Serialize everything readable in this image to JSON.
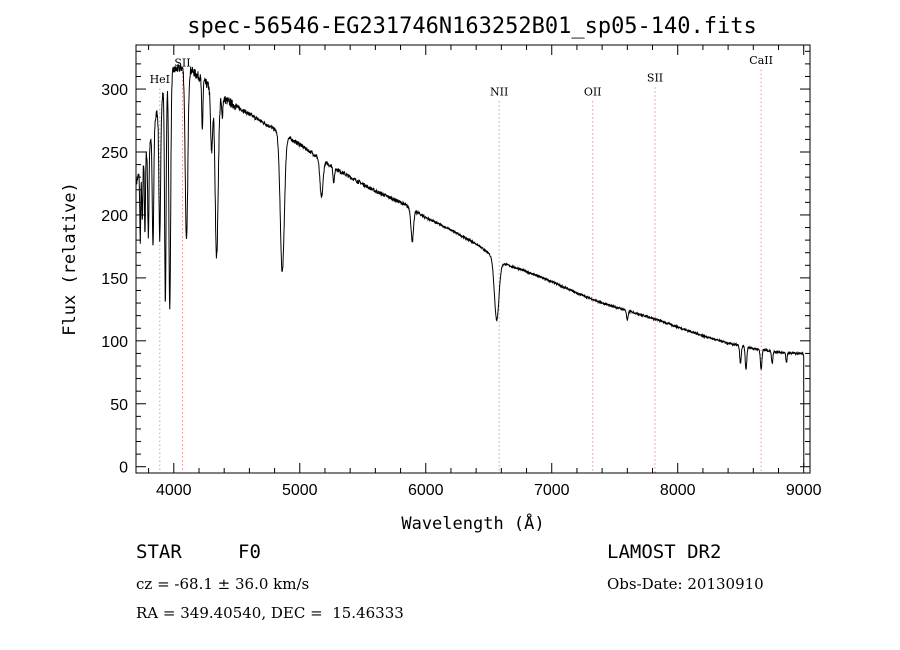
{
  "chart_data": {
    "type": "line",
    "title": "spec-56546-EG231746N163252B01_sp05-140.fits",
    "xlabel": "Wavelength (Å)",
    "ylabel": "Flux (relative)",
    "xlim": [
      3700,
      9050
    ],
    "ylim": [
      -5,
      335
    ],
    "xticks": [
      4000,
      5000,
      6000,
      7000,
      8000,
      9000
    ],
    "yticks": [
      0,
      50,
      100,
      150,
      200,
      250,
      300
    ],
    "grid": false,
    "continuum": {
      "x": [
        3700,
        3800,
        3900,
        4000,
        4100,
        4200,
        4300,
        4400,
        4600,
        4800,
        5000,
        5200,
        5400,
        5600,
        5800,
        6000,
        6200,
        6400,
        6600,
        6800,
        7000,
        7200,
        7400,
        7600,
        7800,
        8000,
        8200,
        8400,
        8600,
        8800,
        8950,
        9000
      ],
      "y": [
        225,
        255,
        295,
        315,
        318,
        310,
        300,
        292,
        280,
        268,
        256,
        242,
        230,
        219,
        210,
        198,
        188,
        177,
        162,
        155,
        147,
        138,
        130,
        124,
        118,
        111,
        104,
        98,
        94,
        91,
        90,
        90
      ]
    },
    "absorption_lines": [
      {
        "center": 3734,
        "depth": 55,
        "width": 4
      },
      {
        "center": 3750,
        "depth": 45,
        "width": 4
      },
      {
        "center": 3771,
        "depth": 60,
        "width": 4
      },
      {
        "center": 3798,
        "depth": 70,
        "width": 5
      },
      {
        "center": 3835,
        "depth": 95,
        "width": 6
      },
      {
        "center": 3889,
        "depth": 110,
        "width": 7
      },
      {
        "center": 3933,
        "depth": 170,
        "width": 6
      },
      {
        "center": 3968,
        "depth": 185,
        "width": 7
      },
      {
        "center": 4101,
        "depth": 140,
        "width": 10
      },
      {
        "center": 4226,
        "depth": 40,
        "width": 5
      },
      {
        "center": 4300,
        "depth": 50,
        "width": 8
      },
      {
        "center": 4340,
        "depth": 130,
        "width": 12
      },
      {
        "center": 4384,
        "depth": 15,
        "width": 5
      },
      {
        "center": 4861,
        "depth": 110,
        "width": 16
      },
      {
        "center": 5172,
        "depth": 30,
        "width": 12
      },
      {
        "center": 5270,
        "depth": 12,
        "width": 6
      },
      {
        "center": 5893,
        "depth": 25,
        "width": 10
      },
      {
        "center": 6563,
        "depth": 48,
        "width": 18
      },
      {
        "center": 7600,
        "depth": 8,
        "width": 6
      },
      {
        "center": 8498,
        "depth": 14,
        "width": 6
      },
      {
        "center": 8542,
        "depth": 18,
        "width": 6
      },
      {
        "center": 8662,
        "depth": 16,
        "width": 6
      },
      {
        "center": 8750,
        "depth": 10,
        "width": 5
      },
      {
        "center": 8863,
        "depth": 8,
        "width": 5
      }
    ],
    "emission_line_markers": [
      {
        "label": "HeI",
        "x": 3889,
        "label_y": 305
      },
      {
        "label": "SII",
        "x": 4069,
        "label_y": 318
      },
      {
        "label": "NII",
        "x": 6583,
        "label_y": 295
      },
      {
        "label": "OII",
        "x": 7325,
        "label_y": 295
      },
      {
        "label": "SII",
        "x": 7820,
        "label_y": 306
      },
      {
        "label": "CaII",
        "x": 8662,
        "label_y": 320
      }
    ]
  },
  "info": {
    "object_class": "STAR",
    "subclass": "F0",
    "survey": "LAMOST DR2",
    "redshift": "cz = -68.1 ± 36.0 km/s",
    "obs_date": "Obs-Date: 20130910",
    "coordinates": "RA = 349.40540, DEC =  15.46333"
  }
}
